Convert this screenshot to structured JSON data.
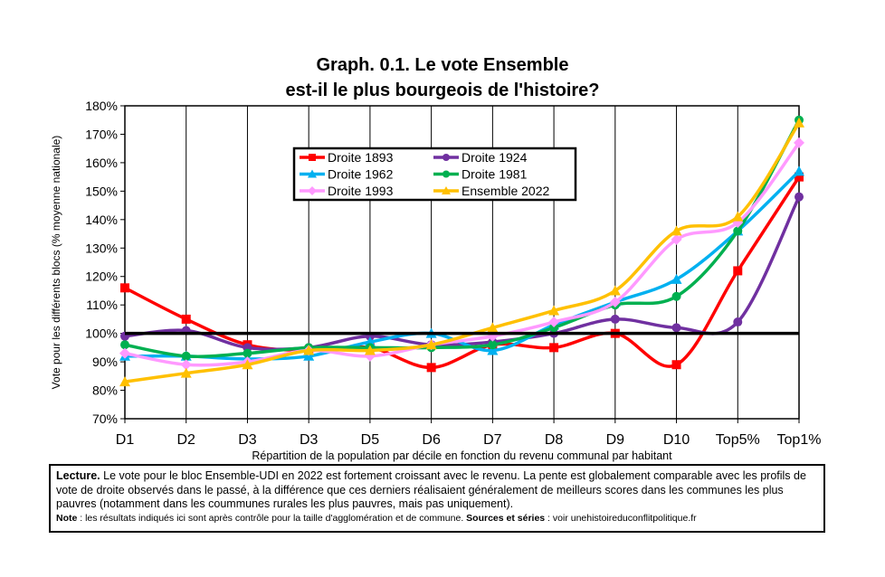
{
  "chart_data": {
    "type": "line",
    "title_line1": "Graph. 0.1. Le vote Ensemble",
    "title_line2": "est-il le plus bourgeois de l'histoire?",
    "xlabel": "Répartition de la population par décile en fonction du revenu communal par habitant",
    "ylabel": "Vote pour les différents blocs (% moyenne nationale)",
    "categories": [
      "D1",
      "D2",
      "D3",
      "D3",
      "D5",
      "D6",
      "D7",
      "D8",
      "D9",
      "D10",
      "Top5%",
      "Top1%"
    ],
    "ylim": [
      70,
      180
    ],
    "yticks": [
      70,
      80,
      90,
      100,
      110,
      120,
      130,
      140,
      150,
      160,
      170,
      180
    ],
    "ytick_labels": [
      "70%",
      "80%",
      "90%",
      "100%",
      "110%",
      "120%",
      "130%",
      "140%",
      "150%",
      "160%",
      "170%",
      "180%"
    ],
    "reference_line": 100,
    "grid": "vertical",
    "legend_position": "top-center",
    "series": [
      {
        "name": "Droite 1893",
        "color": "#ff0000",
        "marker": "square",
        "values": [
          116,
          105,
          96,
          94,
          95,
          88,
          96,
          95,
          100,
          89,
          122,
          155
        ]
      },
      {
        "name": "Droite 1924",
        "color": "#7030a0",
        "marker": "circle",
        "values": [
          99,
          101,
          95,
          95,
          99,
          96,
          97,
          100,
          105,
          102,
          104,
          148
        ]
      },
      {
        "name": "Droite 1962",
        "color": "#00b0f0",
        "marker": "triangle",
        "values": [
          92,
          92,
          91,
          92,
          97,
          100,
          94,
          103,
          111,
          119,
          136,
          157
        ]
      },
      {
        "name": "Droite 1981",
        "color": "#00b050",
        "marker": "circle",
        "values": [
          96,
          92,
          93,
          95,
          95,
          95,
          96,
          102,
          110,
          113,
          136,
          175
        ]
      },
      {
        "name": "Droite 1993",
        "color": "#ff99ff",
        "marker": "diamond",
        "values": [
          93,
          89,
          90,
          94,
          92,
          96,
          99,
          104,
          111,
          133,
          139,
          167
        ]
      },
      {
        "name": "Ensemble 2022",
        "color": "#ffc000",
        "marker": "triangle",
        "values": [
          83,
          86,
          89,
          94,
          94,
          96,
          102,
          108,
          115,
          136,
          141,
          174
        ]
      }
    ]
  },
  "caption": {
    "lecture_label": "Lecture.",
    "lecture_text": " Le vote pour le bloc Ensemble-UDI en 2022 est fortement croissant avec le revenu. La pente est globalement comparable avec les profils de vote de droite observés dans le passé, à la différence que ces derniers réalisaient généralement de meilleurs scores dans les communes les plus pauvres (notamment dans les coummunes rurales les plus pauvres, mais pas uniquement).",
    "note_label": "Note",
    "note_text": " : les résultats indiqués ici sont après contrôle pour la taille d'agglomération et de commune. ",
    "sources_label": "Sources et séries",
    "sources_text": " : voir unehistoireduconflitpolitique.fr"
  }
}
